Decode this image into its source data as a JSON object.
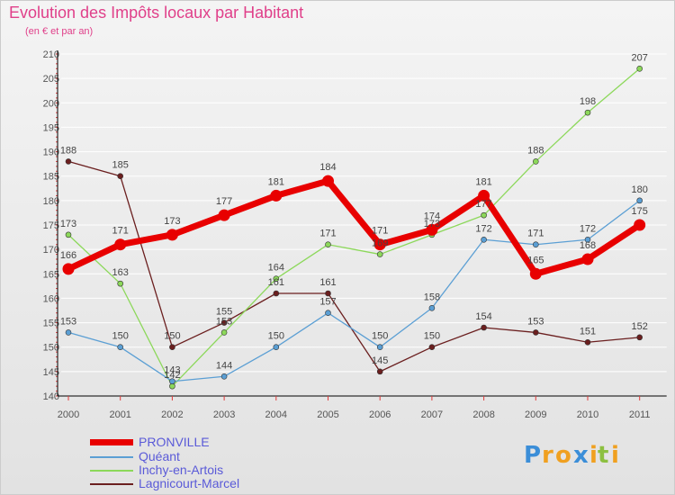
{
  "title": "Evolution des Impôts locaux par Habitant",
  "subtitle": "(en € et par an)",
  "logo_text": "Proxiti",
  "chart_data": {
    "type": "line",
    "title": "Evolution des Impôts locaux par Habitant",
    "ylabel": "(en € et par an)",
    "xlabel": "",
    "categories": [
      "2000",
      "2001",
      "2002",
      "2003",
      "2004",
      "2005",
      "2006",
      "2007",
      "2008",
      "2009",
      "2010",
      "2011"
    ],
    "ylim": [
      140,
      210
    ],
    "yticks": [
      140,
      145,
      150,
      155,
      160,
      165,
      170,
      175,
      180,
      185,
      190,
      195,
      200,
      205,
      210
    ],
    "grid": "horizontal",
    "series": [
      {
        "name": "PRONVILLE",
        "color": "#e80000",
        "values": [
          166,
          171,
          173,
          177,
          181,
          184,
          171,
          174,
          181,
          165,
          168,
          175
        ]
      },
      {
        "name": "Quéant",
        "color": "#5b9fd4",
        "values": [
          153,
          150,
          143,
          144,
          150,
          157,
          150,
          158,
          172,
          171,
          172,
          180
        ]
      },
      {
        "name": "Inchy-en-Artois",
        "color": "#8cd85a",
        "values": [
          173,
          163,
          142,
          153,
          164,
          171,
          169,
          173,
          177,
          188,
          198,
          207
        ]
      },
      {
        "name": "Lagnicourt-Marcel",
        "color": "#6b1f1f",
        "values": [
          188,
          185,
          150,
          155,
          161,
          161,
          145,
          150,
          154,
          153,
          151,
          152
        ]
      }
    ]
  }
}
